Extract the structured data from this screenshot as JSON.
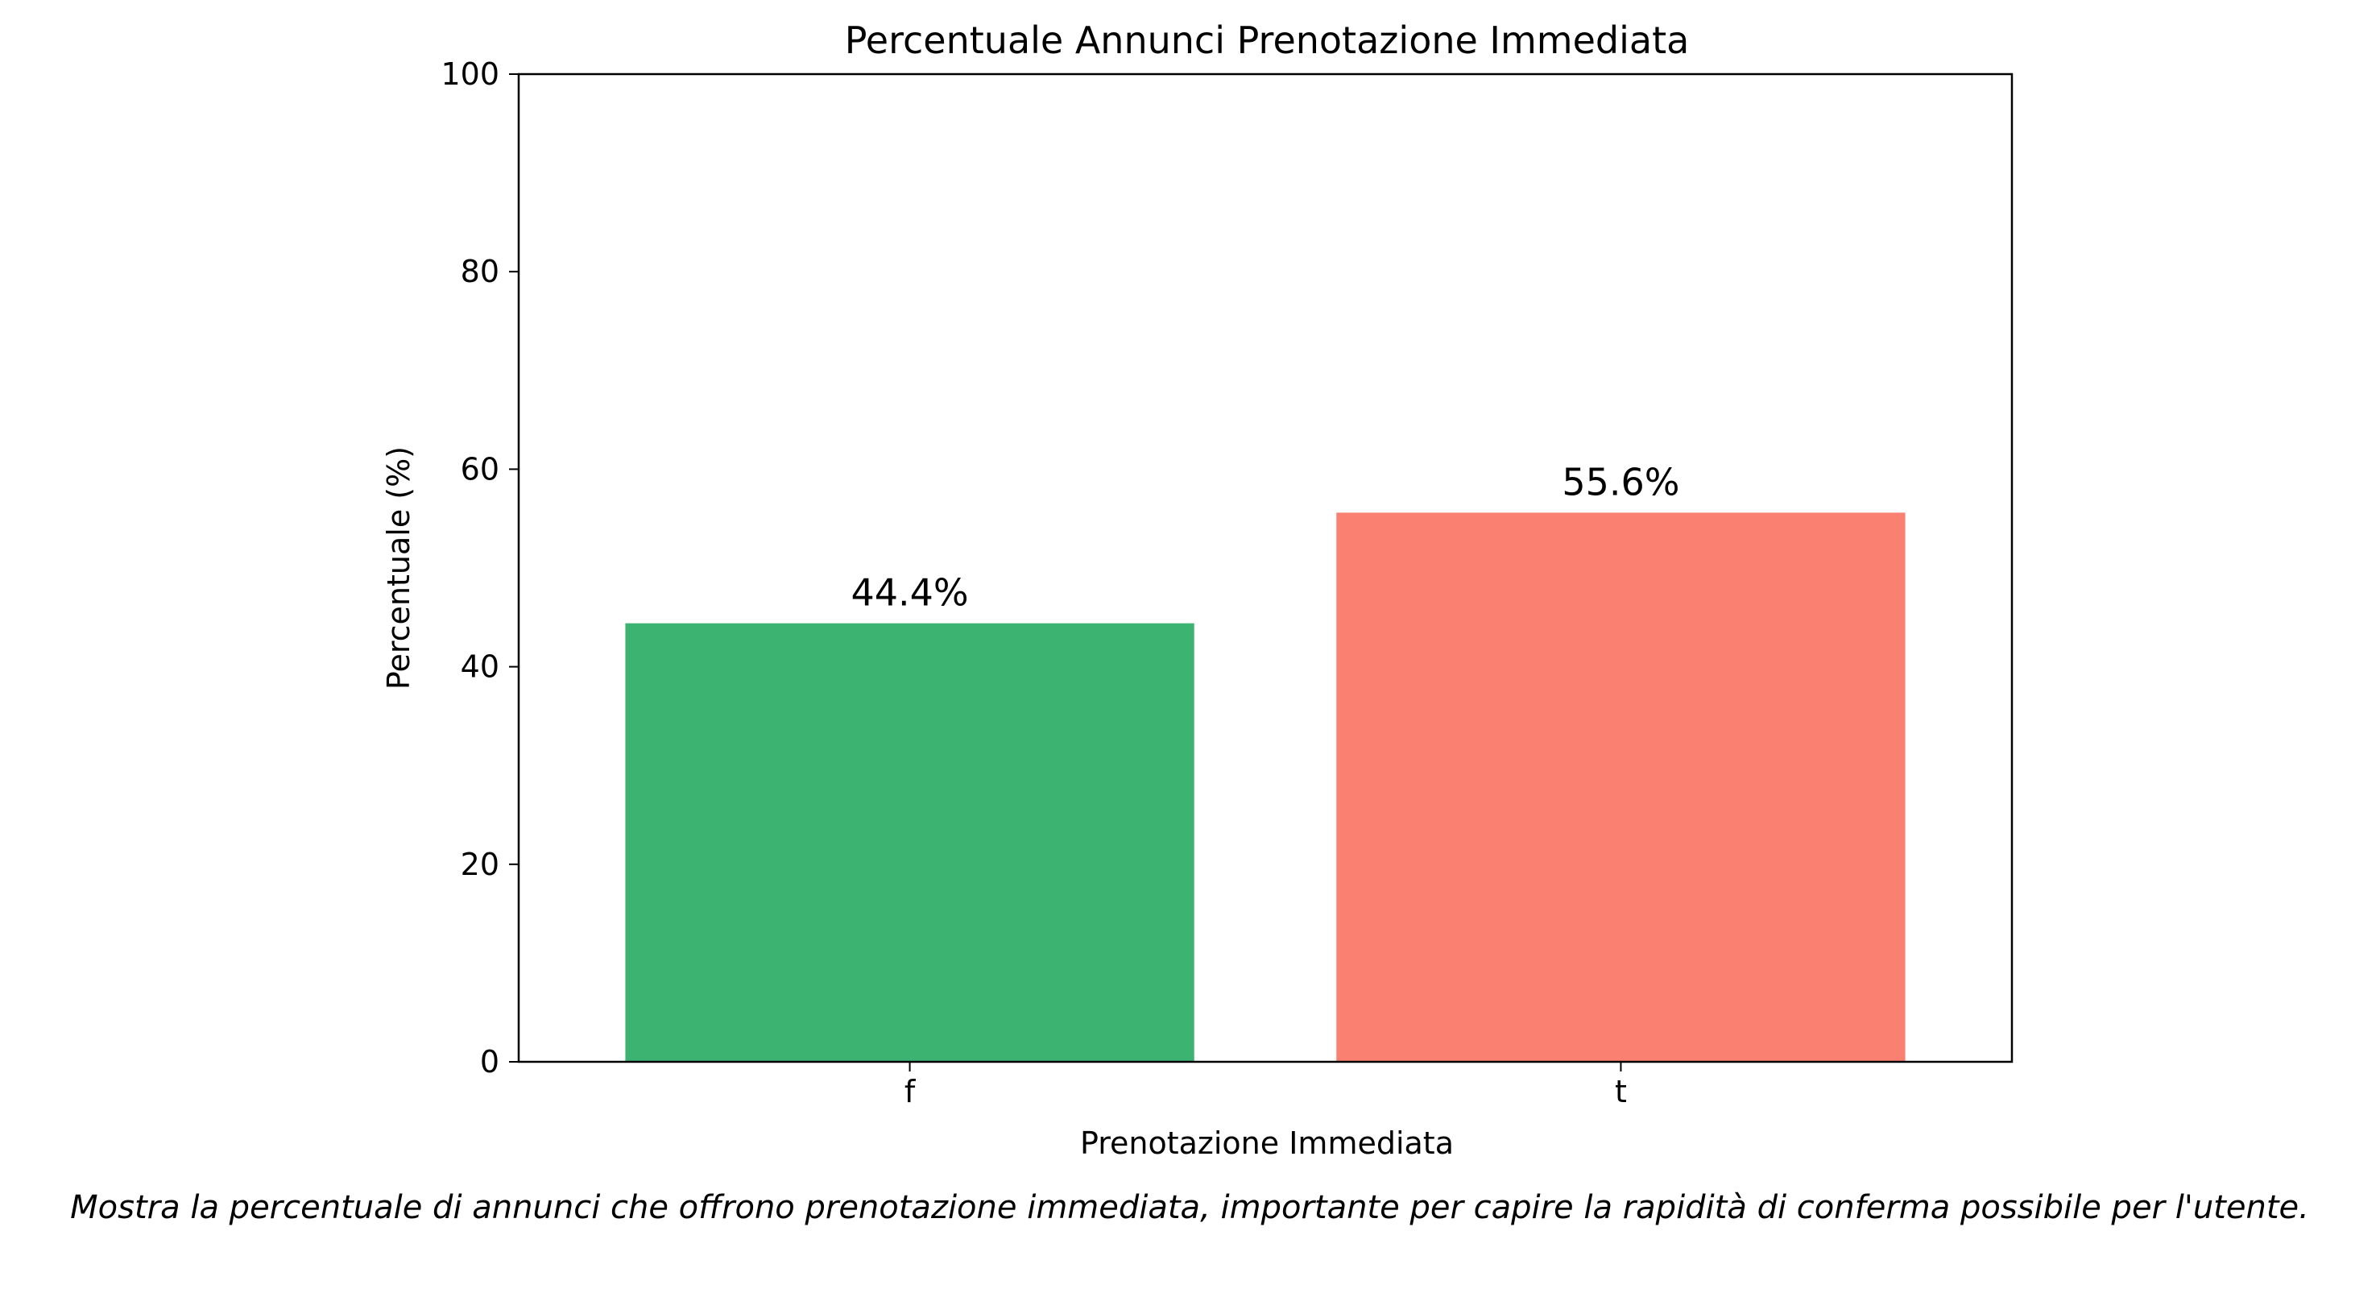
{
  "chart_data": {
    "type": "bar",
    "title": "Percentuale Annunci Prenotazione Immediata",
    "xlabel": "Prenotazione Immediata",
    "ylabel": "Percentuale (%)",
    "categories": [
      "f",
      "t"
    ],
    "values": [
      44.4,
      55.6
    ],
    "value_labels": [
      "44.4%",
      "55.6%"
    ],
    "colors": [
      "#3cb371",
      "#fa8072"
    ],
    "ylim": [
      0,
      100
    ],
    "yticks": [
      0,
      20,
      40,
      60,
      80,
      100
    ],
    "grid": false,
    "caption": "Mostra la percentuale di annunci che offrono prenotazione immediata, importante per capire la rapidità di conferma possibile per l'utente."
  }
}
